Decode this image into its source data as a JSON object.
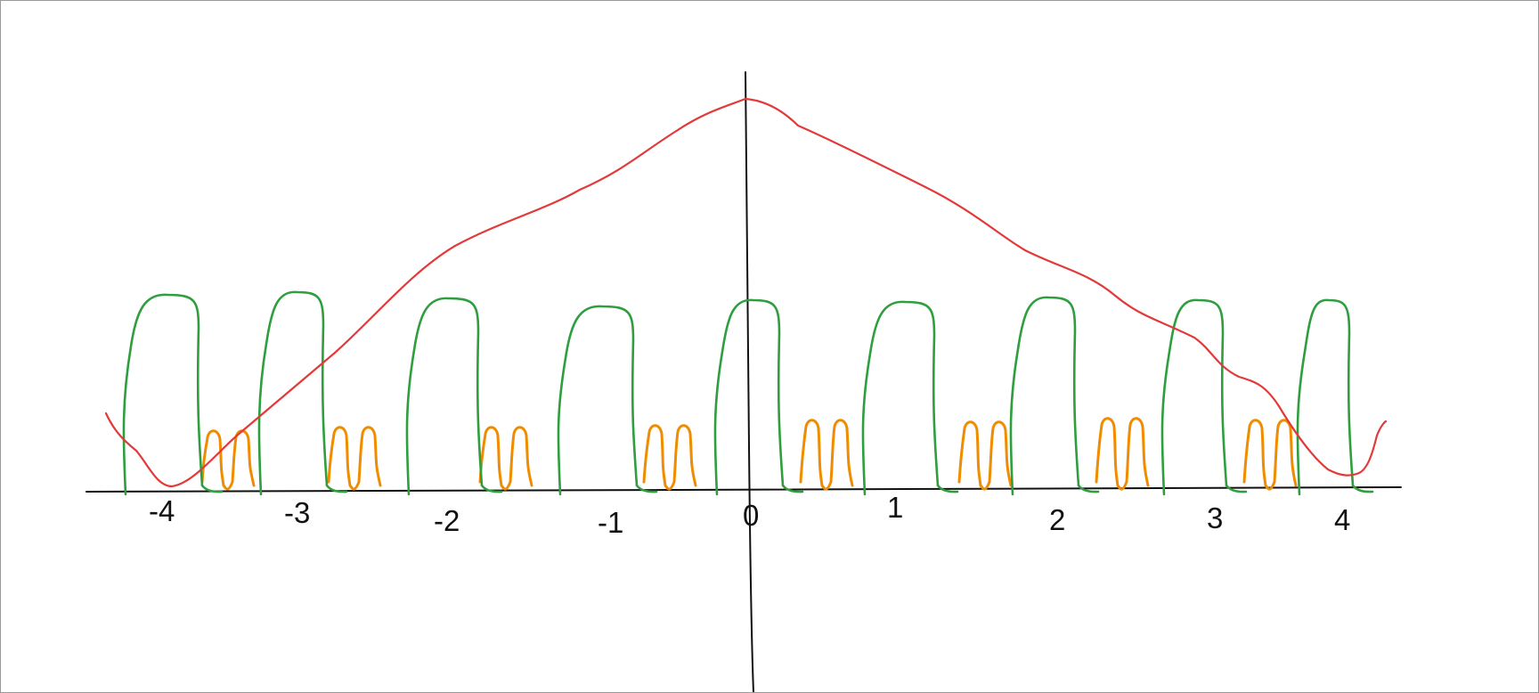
{
  "axis": {
    "tick_labels": [
      "-4",
      "-3",
      "-2",
      "-1",
      "0",
      "1",
      "2",
      "3",
      "4"
    ]
  },
  "colors": {
    "background": "#ffffff",
    "axis": "#111111",
    "envelope_curve": "#e23a3a",
    "wide_pulses": "#2e9e3e",
    "narrow_pulses": "#f08c00"
  },
  "sketch": {
    "style": "hand-drawn",
    "red_curve": "peaked envelope, maximum at x = 0, falling toward both ends",
    "green_pulses": "9 tall rounded rectangular pulses along the x axis",
    "orange_pulses": "8 pairs of small narrow pulses between the green pulses"
  }
}
